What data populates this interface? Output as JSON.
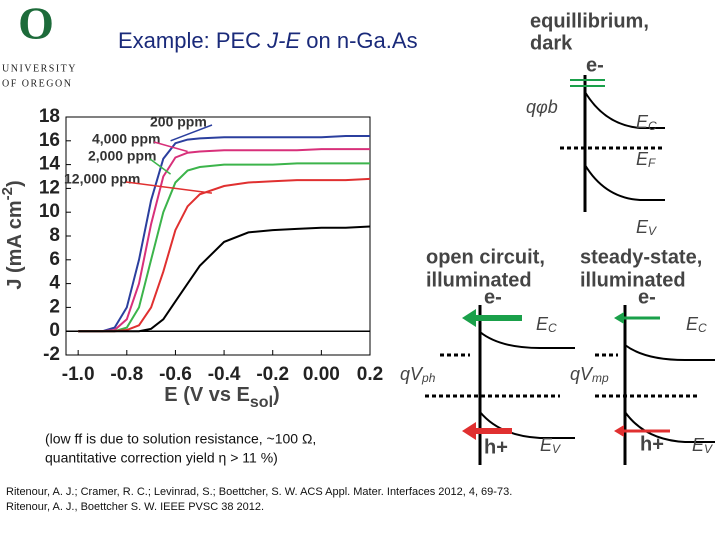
{
  "logo": {
    "letter": "O",
    "line1": "UNIVERSITY",
    "line2": "OF OREGON"
  },
  "title": {
    "pre": "Example: PEC ",
    "italic": "J-E",
    "post": " on n-Ga.As"
  },
  "chart_data": {
    "type": "line",
    "x": [
      -1.0,
      -0.9,
      -0.85,
      -0.8,
      -0.75,
      -0.7,
      -0.65,
      -0.6,
      -0.55,
      -0.5,
      -0.4,
      -0.3,
      -0.2,
      -0.1,
      0,
      0.1,
      0.2
    ],
    "series": [
      {
        "name": "200 ppm",
        "color": "#2b3f9e",
        "values": [
          0,
          0,
          0.3,
          2,
          6,
          11,
          14.5,
          15.8,
          16.1,
          16.2,
          16.3,
          16.3,
          16.3,
          16.3,
          16.3,
          16.4,
          16.4
        ]
      },
      {
        "name": "4,000 ppm",
        "color": "#d8307a",
        "values": [
          0,
          0,
          0.1,
          1,
          4,
          9,
          13,
          14.6,
          15,
          15.1,
          15.2,
          15.2,
          15.2,
          15.2,
          15.3,
          15.3,
          15.3
        ]
      },
      {
        "name": "2,000 ppm",
        "color": "#3cb44b",
        "values": [
          0,
          0,
          0,
          0.3,
          2,
          6,
          10,
          12.5,
          13.5,
          13.8,
          14,
          14,
          14,
          14.1,
          14.1,
          14.1,
          14.1
        ]
      },
      {
        "name": "12,000 ppm",
        "color": "#e03030",
        "values": [
          0,
          0,
          0,
          0.1,
          0.5,
          2,
          5,
          8.5,
          10.5,
          11.5,
          12.2,
          12.5,
          12.6,
          12.7,
          12.7,
          12.7,
          12.8
        ]
      },
      {
        "color": "#000000",
        "values": [
          0,
          0,
          0,
          0,
          0,
          0.2,
          1,
          2.5,
          4,
          5.5,
          7.5,
          8.3,
          8.5,
          8.6,
          8.7,
          8.7,
          8.8
        ]
      }
    ],
    "xlim": [
      -1.05,
      0.2
    ],
    "ylim": [
      -2,
      18
    ],
    "xticks": [
      {
        "value": -1,
        "label": "-1.0"
      },
      -0.8,
      -0.6,
      -0.4,
      -0.2,
      {
        "value": 0,
        "label": "0.00"
      },
      0.2
    ],
    "yticks": [
      -2,
      0,
      2,
      4,
      6,
      8,
      10,
      12,
      14,
      16,
      18
    ],
    "x_label": {
      "main": "E (V vs E",
      "sub": "sol",
      "end": ")"
    },
    "y_label": {
      "main": "J (mA cm",
      "sup": "-2",
      "end": ")"
    }
  },
  "note": {
    "line1": "(low ff is due to solution resistance, ~100 Ω,",
    "line2": "quantitative correction yield η > 11 %)"
  },
  "references": {
    "line1": "Ritenour, A. J.; Cramer, R. C.; Levinrad, S.; Boettcher, S. W.  ACS Appl. Mater. Interfaces 2012, 4, 69-73.",
    "line2": "Ritenour, A. J., Boettcher S. W. IEEE PVSC 38 2012."
  },
  "diagram": {
    "equilibrium": {
      "title1": "equillibrium,",
      "title2": "dark",
      "electron": "e-",
      "barrier": "qφb",
      "ec": {
        "main": "E",
        "sub": "C"
      },
      "ef": {
        "main": "E",
        "sub": "F"
      },
      "ev": {
        "main": "E",
        "sub": "V"
      }
    },
    "open_circuit": {
      "title1": "open circuit,",
      "title2": "illuminated",
      "electron": "e-",
      "ec": {
        "main": "E",
        "sub": "C"
      },
      "voltage": {
        "main": "qV",
        "sub": "ph"
      },
      "hole": "h+",
      "ev": {
        "main": "E",
        "sub": "V"
      }
    },
    "steady_state": {
      "title1": "steady-state,",
      "title2": "illuminated",
      "electron": "e-",
      "ec": {
        "main": "E",
        "sub": "C"
      },
      "voltage": {
        "main": "qV",
        "sub": "mp"
      },
      "hole": "h+",
      "ev": {
        "main": "E",
        "sub": "V"
      }
    }
  }
}
